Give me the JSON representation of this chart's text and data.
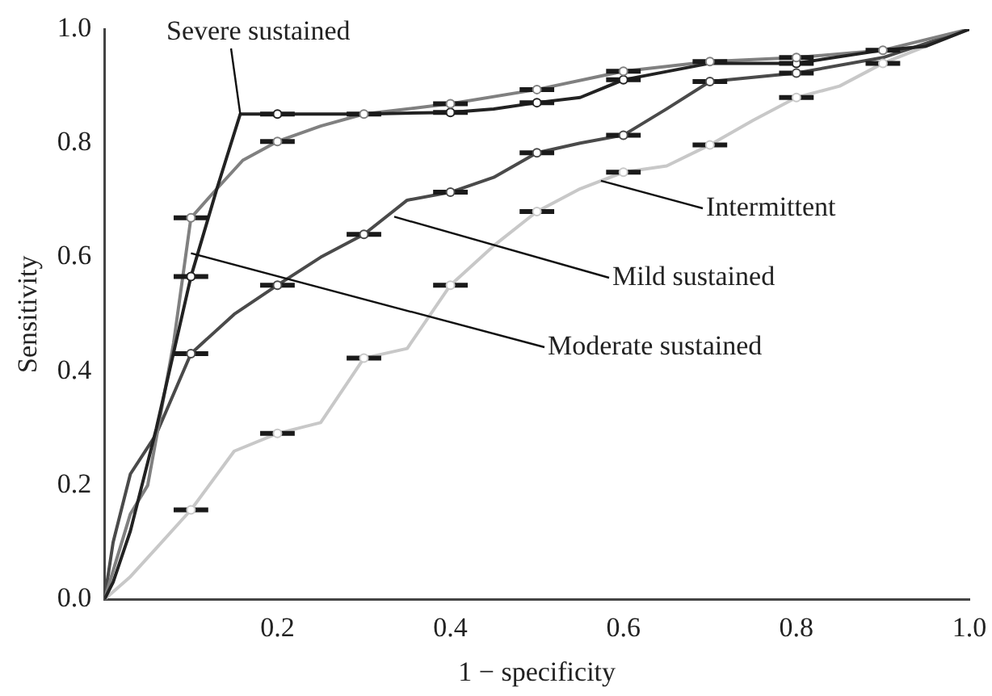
{
  "chart_data": {
    "type": "line",
    "xlabel": "1 − specificity",
    "ylabel": "Sensitivity",
    "xlim": [
      0,
      1
    ],
    "ylim": [
      0,
      1
    ],
    "xticks": [
      {
        "value": 0.2,
        "label": "0.2"
      },
      {
        "value": 0.4,
        "label": "0.4"
      },
      {
        "value": 0.6,
        "label": "0.6"
      },
      {
        "value": 0.8,
        "label": "0.8"
      },
      {
        "value": 1,
        "label": "1.0"
      }
    ],
    "yticks": [
      {
        "value": 0,
        "label": "0.0"
      },
      {
        "value": 0.2,
        "label": "0.2"
      },
      {
        "value": 0.4,
        "label": "0.4"
      },
      {
        "value": 0.6,
        "label": "0.6"
      },
      {
        "value": 0.8,
        "label": "0.8"
      },
      {
        "value": 1,
        "label": "1.0"
      }
    ],
    "grid": false,
    "legend": false,
    "line_style": "solid",
    "series": [
      {
        "color": "#222222",
        "x": [
          0,
          0.01,
          0.03,
          0.06,
          0.1,
          0.13,
          0.157,
          0.2,
          0.3,
          0.4,
          0.45,
          0.5,
          0.55,
          0.6,
          0.7,
          0.8,
          0.9,
          0.95,
          1
        ],
        "values": [
          0,
          0.03,
          0.12,
          0.3,
          0.566,
          0.72,
          0.851,
          0.851,
          0.851,
          0.854,
          0.86,
          0.871,
          0.88,
          0.911,
          0.94,
          0.94,
          0.963,
          0.97,
          1
        ],
        "xerrors": [
          null,
          null,
          null,
          null,
          0.02,
          null,
          null,
          0.02,
          null,
          0.02,
          null,
          0.02,
          null,
          0.02,
          null,
          0.02,
          null,
          null,
          null
        ]
      },
      {
        "color": "#808080",
        "x": [
          0,
          0.01,
          0.03,
          0.05,
          0.08,
          0.1,
          0.13,
          0.16,
          0.2,
          0.25,
          0.3,
          0.4,
          0.5,
          0.6,
          0.7,
          0.8,
          0.9,
          1
        ],
        "values": [
          0,
          0.05,
          0.15,
          0.2,
          0.45,
          0.669,
          0.72,
          0.77,
          0.803,
          0.83,
          0.851,
          0.869,
          0.894,
          0.926,
          0.943,
          0.95,
          0.963,
          1
        ],
        "xerrors": [
          null,
          null,
          null,
          null,
          null,
          0.02,
          null,
          null,
          0.02,
          null,
          0.02,
          0.02,
          0.02,
          0.02,
          0.02,
          0.02,
          0.02,
          null
        ]
      },
      {
        "color": "#4a4a4a",
        "x": [
          0,
          0.01,
          0.03,
          0.06,
          0.1,
          0.15,
          0.2,
          0.25,
          0.3,
          0.35,
          0.4,
          0.45,
          0.5,
          0.55,
          0.6,
          0.65,
          0.7,
          0.8,
          0.9,
          1
        ],
        "values": [
          0,
          0.1,
          0.22,
          0.29,
          0.431,
          0.5,
          0.551,
          0.6,
          0.64,
          0.7,
          0.714,
          0.74,
          0.783,
          0.8,
          0.814,
          0.86,
          0.908,
          0.923,
          0.95,
          1
        ],
        "xerrors": [
          null,
          null,
          null,
          null,
          0.02,
          null,
          0.02,
          null,
          0.02,
          null,
          0.02,
          null,
          0.02,
          null,
          0.02,
          null,
          0.02,
          0.02,
          null,
          null
        ]
      },
      {
        "color": "#c8c8c8",
        "x": [
          0,
          0.03,
          0.06,
          0.1,
          0.15,
          0.2,
          0.25,
          0.3,
          0.35,
          0.4,
          0.45,
          0.5,
          0.55,
          0.6,
          0.65,
          0.7,
          0.75,
          0.8,
          0.85,
          0.9,
          0.95,
          1
        ],
        "values": [
          0,
          0.04,
          0.09,
          0.157,
          0.26,
          0.291,
          0.31,
          0.423,
          0.44,
          0.551,
          0.62,
          0.68,
          0.72,
          0.749,
          0.76,
          0.797,
          0.84,
          0.88,
          0.9,
          0.94,
          0.97,
          1
        ],
        "xerrors": [
          null,
          null,
          null,
          0.02,
          null,
          0.02,
          null,
          0.02,
          null,
          0.02,
          null,
          0.02,
          null,
          0.02,
          null,
          0.02,
          null,
          0.02,
          null,
          0.02,
          null,
          null
        ]
      }
    ],
    "annotations": [
      {
        "text": "Severe sustained",
        "x": 0.157,
        "y": 0.851
      },
      {
        "text": "Moderate sustained",
        "x": 0.1,
        "y": 0.607
      },
      {
        "text": "Mild sustained",
        "x": 0.335,
        "y": 0.671
      },
      {
        "text": "Intermittent",
        "x": 0.574,
        "y": 0.734
      }
    ]
  }
}
